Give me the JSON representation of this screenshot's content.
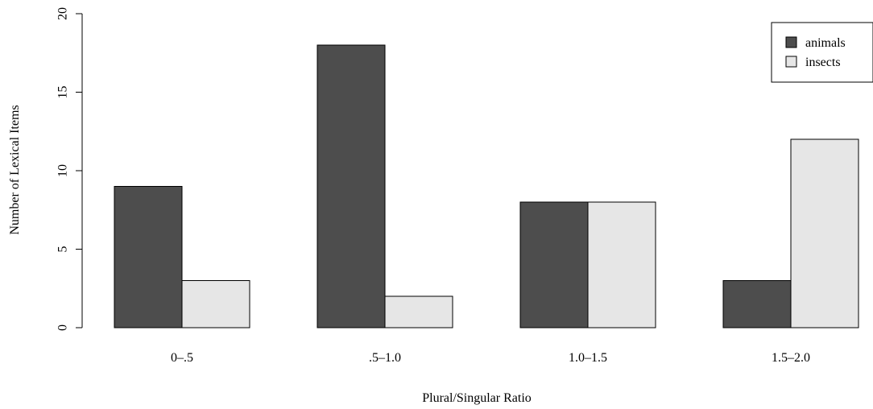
{
  "chart_data": {
    "type": "bar",
    "categories": [
      "0–.5",
      ".5–1.0",
      "1.0–1.5",
      "1.5–2.0"
    ],
    "series": [
      {
        "name": "animals",
        "values": [
          9,
          18,
          8,
          3
        ],
        "color": "#4d4d4d"
      },
      {
        "name": "insects",
        "values": [
          3,
          2,
          8,
          12
        ],
        "color": "#e6e6e6"
      }
    ],
    "xlabel": "Plural/Singular Ratio",
    "ylabel": "Number of Lexical Items",
    "ylim": [
      0,
      20
    ],
    "yticks": [
      "0",
      "5",
      "10",
      "15",
      "20"
    ],
    "grid": false,
    "legend_position": "top-right"
  }
}
